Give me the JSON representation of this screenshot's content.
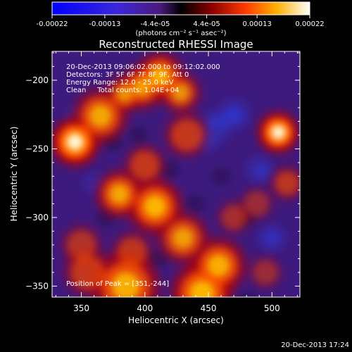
{
  "chart_data": {
    "type": "heatmap",
    "title": "Reconstructed RHESSI Image",
    "xlabel": "Heliocentric X (arcsec)",
    "ylabel": "Heliocentric Y (arcsec)",
    "xlim": [
      327,
      522
    ],
    "ylim": [
      -358,
      -179
    ],
    "xticks": [
      350,
      400,
      450,
      500
    ],
    "yticks": [
      -200,
      -250,
      -300,
      -350
    ],
    "colorbar": {
      "ticks": [
        -0.00022,
        -0.00013,
        -4.4e-05,
        4.4e-05,
        0.00013,
        0.00022
      ],
      "tick_labels": [
        "-0.00022",
        "-0.00013",
        "-4.4e-05",
        "4.4e-05",
        "0.00013",
        "0.00022"
      ],
      "units": "(photons cm⁻² s⁻¹ asec⁻²)",
      "range": [
        -0.00022,
        0.00022
      ]
    },
    "annotations": [
      "20-Dec-2013 09:06:02.000 to 09:12:02.000",
      "Detectors: 3F 5F 6F 7F 8F 9F, Att 0",
      "Energy Range: 12.0 - 25.0 keV",
      "Clean     Total counts: 1.04E+04"
    ],
    "peak_label": "Position of Peak = [351,-244]",
    "timestamp": "20-Dec-2013 17:24",
    "peak": [
      351,
      -244
    ],
    "bright_regions": [
      {
        "x": 345,
        "y": -245,
        "s": 14,
        "a": 1.0
      },
      {
        "x": 365,
        "y": -226,
        "s": 16,
        "a": 0.7
      },
      {
        "x": 384,
        "y": -210,
        "s": 11,
        "a": 0.6
      },
      {
        "x": 398,
        "y": -205,
        "s": 13,
        "a": 0.65
      },
      {
        "x": 412,
        "y": -197,
        "s": 14,
        "a": 0.75
      },
      {
        "x": 428,
        "y": -209,
        "s": 12,
        "a": 0.6
      },
      {
        "x": 433,
        "y": -240,
        "s": 13,
        "a": 0.55
      },
      {
        "x": 400,
        "y": -262,
        "s": 12,
        "a": 0.55
      },
      {
        "x": 380,
        "y": -283,
        "s": 14,
        "a": 0.7
      },
      {
        "x": 408,
        "y": -292,
        "s": 16,
        "a": 0.8
      },
      {
        "x": 430,
        "y": -315,
        "s": 15,
        "a": 0.65
      },
      {
        "x": 458,
        "y": -335,
        "s": 16,
        "a": 0.75
      },
      {
        "x": 445,
        "y": -355,
        "s": 18,
        "a": 0.8
      },
      {
        "x": 385,
        "y": -350,
        "s": 20,
        "a": 0.75
      },
      {
        "x": 355,
        "y": -340,
        "s": 14,
        "a": 0.55
      },
      {
        "x": 350,
        "y": -320,
        "s": 12,
        "a": 0.45
      },
      {
        "x": 390,
        "y": -325,
        "s": 12,
        "a": 0.5
      },
      {
        "x": 505,
        "y": -238,
        "s": 12,
        "a": 0.95
      },
      {
        "x": 512,
        "y": -275,
        "s": 10,
        "a": 0.5
      },
      {
        "x": 470,
        "y": -300,
        "s": 10,
        "a": 0.4
      },
      {
        "x": 495,
        "y": -340,
        "s": 10,
        "a": 0.35
      },
      {
        "x": 488,
        "y": -290,
        "s": 10,
        "a": 0.35
      }
    ],
    "dim_regions": [
      {
        "x": 360,
        "y": -275,
        "s": 10,
        "a": 0.45
      },
      {
        "x": 455,
        "y": -235,
        "s": 14,
        "a": 0.5
      },
      {
        "x": 470,
        "y": -225,
        "s": 14,
        "a": 0.45
      },
      {
        "x": 345,
        "y": -225,
        "s": 8,
        "a": 0.3
      },
      {
        "x": 490,
        "y": -265,
        "s": 12,
        "a": 0.4
      },
      {
        "x": 500,
        "y": -315,
        "s": 12,
        "a": 0.4
      }
    ]
  }
}
